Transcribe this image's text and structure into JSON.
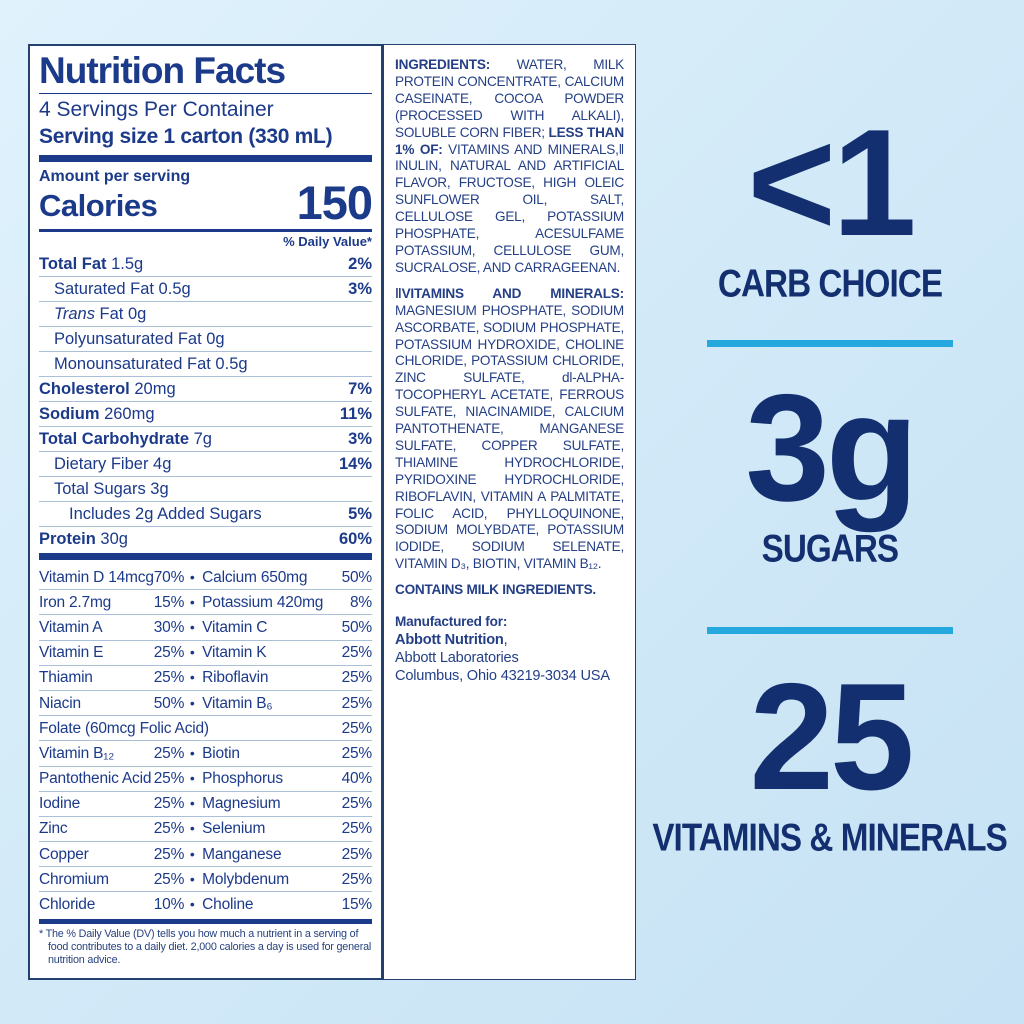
{
  "colors": {
    "navy": "#1c3a8a",
    "callout_navy": "#132f70",
    "cyan_divider": "#25a8dd",
    "hairline": "#aabfd8",
    "panel_background": "#ffffff",
    "page_background": "#d3eaf8"
  },
  "nutrition_facts": {
    "title": "Nutrition Facts",
    "servings_per_container": "4 Servings Per Container",
    "serving_size": "Serving size 1 carton (330 mL)",
    "amount_per_serving": "Amount per serving",
    "calories_label": "Calories",
    "calories_value": "150",
    "daily_value_header": "% Daily Value*",
    "rows": [
      {
        "b": "Total Fat",
        "r": " 1.5g",
        "dv": "2%",
        "ind": 0
      },
      {
        "r": "Saturated Fat 0.5g",
        "dv": "3%",
        "ind": 1
      },
      {
        "i": "Trans",
        "r": " Fat 0g",
        "dv": "",
        "ind": 1
      },
      {
        "r": "Polyunsaturated Fat 0g",
        "dv": "",
        "ind": 1
      },
      {
        "r": "Monounsaturated Fat 0.5g",
        "dv": "",
        "ind": 1
      },
      {
        "b": "Cholesterol",
        "r": " 20mg",
        "dv": "7%",
        "ind": 0
      },
      {
        "b": "Sodium",
        "r": " 260mg",
        "dv": "11%",
        "ind": 0
      },
      {
        "b": "Total Carbohydrate",
        "r": " 7g",
        "dv": "3%",
        "ind": 0
      },
      {
        "r": "Dietary Fiber 4g",
        "dv": "14%",
        "ind": 1
      },
      {
        "r": "Total Sugars 3g",
        "dv": "",
        "ind": 1
      },
      {
        "r": "Includes 2g Added Sugars",
        "dv": "5%",
        "ind": 2
      },
      {
        "b": "Protein",
        "r": " 30g",
        "dv": "60%",
        "ind": 0
      }
    ],
    "micronutrients": [
      {
        "ln": "Vitamin D 14mcg",
        "lp": "70%",
        "rn": "Calcium 650mg",
        "rp": "50%"
      },
      {
        "ln": "Iron 2.7mg",
        "lp": "15%",
        "rn": "Potassium 420mg",
        "rp": "8%"
      },
      {
        "ln": "Vitamin A",
        "lp": "30%",
        "rn": "Vitamin C",
        "rp": "50%"
      },
      {
        "ln": "Vitamin E",
        "lp": "25%",
        "rn": "Vitamin K",
        "rp": "25%"
      },
      {
        "ln": "Thiamin",
        "lp": "25%",
        "rn": "Riboflavin",
        "rp": "25%"
      },
      {
        "ln": "Niacin",
        "lp": "50%",
        "rn": "Vitamin B₆",
        "rp": "25%"
      },
      {
        "full": true,
        "ln": "Folate (60mcg Folic Acid)",
        "rp": "25%"
      },
      {
        "ln": "Vitamin B₁₂",
        "lp": "25%",
        "rn": "Biotin",
        "rp": "25%"
      },
      {
        "ln": "Pantothenic Acid",
        "lp": "25%",
        "rn": "Phosphorus",
        "rp": "40%"
      },
      {
        "ln": "Iodine",
        "lp": "25%",
        "rn": "Magnesium",
        "rp": "25%"
      },
      {
        "ln": "Zinc",
        "lp": "25%",
        "rn": "Selenium",
        "rp": "25%"
      },
      {
        "ln": "Copper",
        "lp": "25%",
        "rn": "Manganese",
        "rp": "25%"
      },
      {
        "ln": "Chromium",
        "lp": "25%",
        "rn": "Molybdenum",
        "rp": "25%"
      },
      {
        "ln": "Chloride",
        "lp": "10%",
        "rn": "Choline",
        "rp": "15%"
      }
    ],
    "footnote": "* The % Daily Value (DV) tells you how much a nutrient in a serving of food contributes to a daily diet. 2,000 calories a day is used for general nutrition advice."
  },
  "ingredients_panel": {
    "ingredients_label": "INGREDIENTS:",
    "ingredients_text": " WATER, MILK PROTEIN CONCENTRATE, CALCIUM CASEINATE, COCOA POWDER (PROCESSED WITH ALKALI), SOLUBLE CORN FIBER; ",
    "less_than_label": "LESS THAN 1% OF:",
    "less_than_text": " VITAMINS AND MINERALS,‖ INULIN, NATURAL AND ARTIFICIAL FLAVOR, FRUCTOSE, HIGH OLEIC SUNFLOWER OIL, SALT, CELLULOSE GEL, POTASSIUM PHOSPHATE, ACESULFAME POTASSIUM, CELLULOSE GUM, SUCRALOSE, AND CARRAGEENAN.",
    "vitamins_label": "‖VITAMINS AND MINERALS:",
    "vitamins_text": " MAGNESIUM PHOSPHATE, SODIUM ASCORBATE, SODIUM PHOSPHATE, POTASSIUM HYDROXIDE, CHOLINE CHLORIDE, POTASSIUM CHLORIDE, ZINC SULFATE, dl-ALPHA-TOCOPHERYL ACETATE, FERROUS SULFATE, NIACINAMIDE, CALCIUM PANTOTHENATE, MANGANESE SULFATE, COPPER SULFATE, THIAMINE HYDROCHLORIDE, PYRIDOXINE HYDROCHLORIDE, RIBOFLAVIN, VITAMIN A PALMITATE, FOLIC ACID, PHYLLOQUINONE, SODIUM MOLYBDATE, POTASSIUM IODIDE, SODIUM SELENATE, VITAMIN D₃, BIOTIN, VITAMIN B₁₂.",
    "contains": "CONTAINS MILK INGREDIENTS.",
    "manufactured_for": "Manufactured for:",
    "manufacturer_name": "Abbott Nutrition",
    "manufacturer_name_suffix": ",",
    "manufacturer_line2": "Abbott Laboratories",
    "manufacturer_line3": "Columbus, Ohio 43219-3034 USA"
  },
  "callouts": [
    {
      "value": "<1",
      "label": "CARB CHOICE"
    },
    {
      "value": "3g",
      "label": "SUGARS"
    },
    {
      "value": "25",
      "label": "VITAMINS & MINERALS"
    }
  ]
}
